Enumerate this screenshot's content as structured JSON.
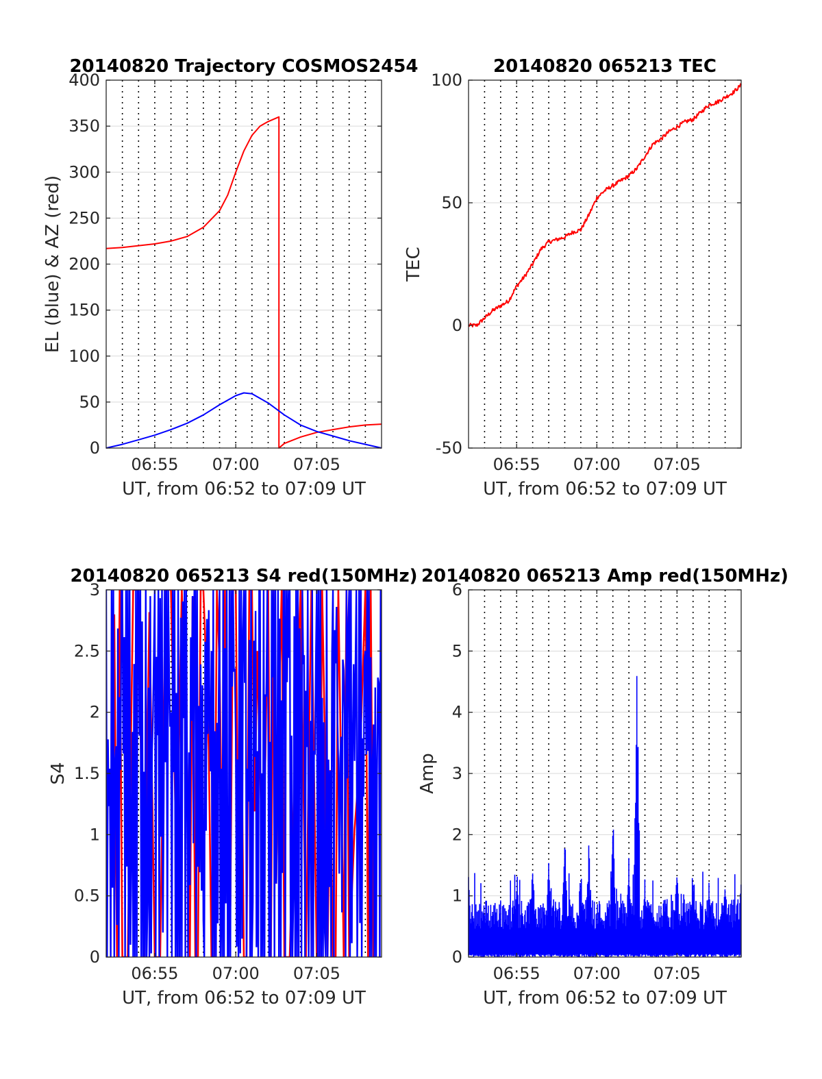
{
  "figure": {
    "background": "#ffffff",
    "colors": {
      "red": "#ff0000",
      "blue": "#0000ff",
      "grid": "#d9d9d9",
      "axis": "#262626"
    }
  },
  "chart_data": [
    {
      "id": "trajectory",
      "type": "line",
      "title": "20140820 Trajectory COSMOS2454",
      "xlabel": "UT, from 06:52 to 07:09 UT",
      "ylabel": "EL (blue) & AZ (red)",
      "xlim": [
        "06:52",
        "07:09"
      ],
      "ylim": [
        0,
        400
      ],
      "yticks": [
        0,
        50,
        100,
        150,
        200,
        250,
        300,
        350,
        400
      ],
      "yticklabels": [
        "0",
        "50",
        "100",
        "150",
        "200",
        "250",
        "300",
        "350",
        "400"
      ],
      "xticks": [
        "06:55",
        "07:00",
        "07:05"
      ],
      "minute_gridlines": "dotted",
      "grid": true,
      "series": [
        {
          "color": "#ff0000",
          "x": [
            "06:52",
            "06:53",
            "06:54",
            "06:55",
            "06:56",
            "06:57",
            "06:58",
            "06:59",
            "06:59:30",
            "07:00",
            "07:00:30",
            "07:01",
            "07:01:30",
            "07:02",
            "07:02:40",
            "07:02:40",
            "07:03",
            "07:04",
            "07:05",
            "07:06",
            "07:07",
            "07:08",
            "07:09"
          ],
          "values": [
            217,
            218,
            220,
            222,
            225,
            230,
            240,
            258,
            275,
            300,
            323,
            340,
            350,
            355,
            360,
            0,
            5,
            12,
            17,
            20,
            23,
            25,
            26
          ]
        },
        {
          "color": "#0000ff",
          "x": [
            "06:52",
            "06:53",
            "06:54",
            "06:55",
            "06:56",
            "06:57",
            "06:58",
            "06:59",
            "07:00",
            "07:00:30",
            "07:01",
            "07:02",
            "07:03",
            "07:04",
            "07:05",
            "07:06",
            "07:07",
            "07:08",
            "07:09"
          ],
          "values": [
            0,
            4,
            9,
            14,
            20,
            27,
            36,
            47,
            57,
            60,
            59,
            49,
            36,
            25,
            18,
            13,
            8,
            4,
            0
          ]
        }
      ]
    },
    {
      "id": "tec",
      "type": "line",
      "title": "20140820 065213 TEC",
      "xlabel": "UT, from 06:52 to 07:09 UT",
      "ylabel": "TEC",
      "xlim": [
        "06:52",
        "07:09"
      ],
      "ylim": [
        -50,
        100
      ],
      "yticks": [
        -50,
        0,
        50,
        100
      ],
      "yticklabels": [
        "-50",
        "0",
        "50",
        "100"
      ],
      "xticks": [
        "06:55",
        "07:00",
        "07:05"
      ],
      "minute_gridlines": "dotted",
      "grid": true,
      "series": [
        {
          "color": "#ff0000",
          "x": [
            "06:52",
            "06:52:30",
            "06:53",
            "06:53:30",
            "06:54",
            "06:54:30",
            "06:55",
            "06:55:30",
            "06:56",
            "06:56:30",
            "06:57",
            "06:57:30",
            "06:58",
            "06:58:30",
            "06:59",
            "06:59:30",
            "07:00",
            "07:00:30",
            "07:01",
            "07:01:30",
            "07:02",
            "07:02:30",
            "07:03",
            "07:03:30",
            "07:04",
            "07:04:30",
            "07:05",
            "07:05:30",
            "07:06",
            "07:06:30",
            "07:07",
            "07:07:30",
            "07:08",
            "07:08:30",
            "07:09"
          ],
          "values": [
            0,
            0,
            3,
            6,
            8,
            10,
            16,
            20,
            25,
            31,
            34,
            35,
            36,
            38,
            39,
            45,
            52,
            55,
            57,
            59,
            61,
            64,
            69,
            74,
            76,
            79,
            81,
            83,
            84,
            87,
            90,
            91,
            93,
            95,
            98
          ]
        }
      ]
    },
    {
      "id": "s4",
      "type": "line",
      "title": "20140820 065213 S4 red(150MHz)",
      "xlabel": "UT, from 06:52 to 07:09 UT",
      "ylabel": "S4",
      "xlim": [
        "06:52",
        "07:09"
      ],
      "ylim": [
        0,
        3
      ],
      "yticks": [
        0,
        0.5,
        1,
        1.5,
        2,
        2.5,
        3
      ],
      "yticklabels": [
        "0",
        "0.5",
        "1",
        "1.5",
        "2",
        "2.5",
        "3"
      ],
      "xticks": [
        "06:55",
        "07:00",
        "07:05"
      ],
      "minute_gridlines": "dotted",
      "grid": true,
      "series": [
        {
          "color": "#ff0000",
          "x": [
            "06:52:30",
            "06:53",
            "06:54",
            "06:55",
            "06:56",
            "06:57",
            "06:57:30",
            "06:58",
            "06:58:30",
            "06:59",
            "06:59:30",
            "07:00",
            "07:00:30",
            "07:01",
            "07:01:30",
            "07:02",
            "07:02:30",
            "07:03",
            "07:04",
            "07:05",
            "07:05:30",
            "07:06",
            "07:06:30",
            "07:07",
            "07:08",
            "07:08:30"
          ],
          "values": [
            2.8,
            0,
            3,
            0,
            3,
            1.5,
            0,
            3,
            0,
            2.4,
            0.4,
            3,
            0,
            3,
            1.5,
            3,
            0.6,
            0,
            3,
            0,
            1.8,
            0,
            1.5,
            0,
            3,
            0
          ]
        },
        {
          "color": "#0000ff",
          "x": [
            "06:52",
            "06:52:30",
            "06:53",
            "06:53:30",
            "06:54",
            "06:54:30",
            "06:55",
            "06:55:30",
            "06:56",
            "06:56:30",
            "06:57",
            "06:57:30",
            "06:58",
            "06:58:30",
            "06:59",
            "06:59:30",
            "07:00",
            "07:00:30",
            "07:01",
            "07:01:30",
            "07:02",
            "07:02:30",
            "07:03",
            "07:03:30",
            "07:04",
            "07:04:30",
            "07:05",
            "07:05:30",
            "07:06",
            "07:06:30",
            "07:07",
            "07:07:30",
            "07:08",
            "07:08:30",
            "07:09"
          ],
          "values": [
            3,
            0,
            3,
            0.1,
            3,
            0,
            3,
            0.2,
            2,
            0,
            1.5,
            3,
            0.3,
            2.5,
            3,
            0,
            1.8,
            3,
            0,
            3,
            2,
            0.6,
            3,
            0,
            2.2,
            0,
            3,
            0.2,
            3,
            1.8,
            3,
            0,
            2.5,
            1.9,
            2.2
          ]
        }
      ]
    },
    {
      "id": "amp",
      "type": "line",
      "title": "20140820 065213 Amp red(150MHz)",
      "xlabel": "UT, from 06:52 to 07:09 UT",
      "ylabel": "Amp",
      "xlim": [
        "06:52",
        "07:09"
      ],
      "ylim": [
        0,
        6
      ],
      "yticks": [
        0,
        1,
        2,
        3,
        4,
        5,
        6
      ],
      "yticklabels": [
        "0",
        "1",
        "2",
        "3",
        "4",
        "5",
        "6"
      ],
      "xticks": [
        "06:55",
        "07:00",
        "07:05"
      ],
      "minute_gridlines": "dotted",
      "grid": true,
      "series": [
        {
          "color": "#0000ff",
          "peaks": [
            {
              "x": "06:52",
              "value": 1.45
            },
            {
              "x": "06:55",
              "value": 1.3
            },
            {
              "x": "06:56",
              "value": 1.75
            },
            {
              "x": "06:57",
              "value": 1.6
            },
            {
              "x": "06:58",
              "value": 2.2
            },
            {
              "x": "06:59",
              "value": 1.6
            },
            {
              "x": "06:59:30",
              "value": 2.0
            },
            {
              "x": "07:01",
              "value": 2.7
            },
            {
              "x": "07:02",
              "value": 1.7
            },
            {
              "x": "07:02:30",
              "value": 5.1
            },
            {
              "x": "07:03",
              "value": 1.3
            },
            {
              "x": "07:05",
              "value": 1.55
            },
            {
              "x": "07:06",
              "value": 1.7
            },
            {
              "x": "07:07",
              "value": 1.3
            },
            {
              "x": "07:08",
              "value": 1.4
            },
            {
              "x": "07:09",
              "value": 1.3
            }
          ],
          "baseline_range": [
            0,
            0.9
          ]
        }
      ]
    }
  ]
}
